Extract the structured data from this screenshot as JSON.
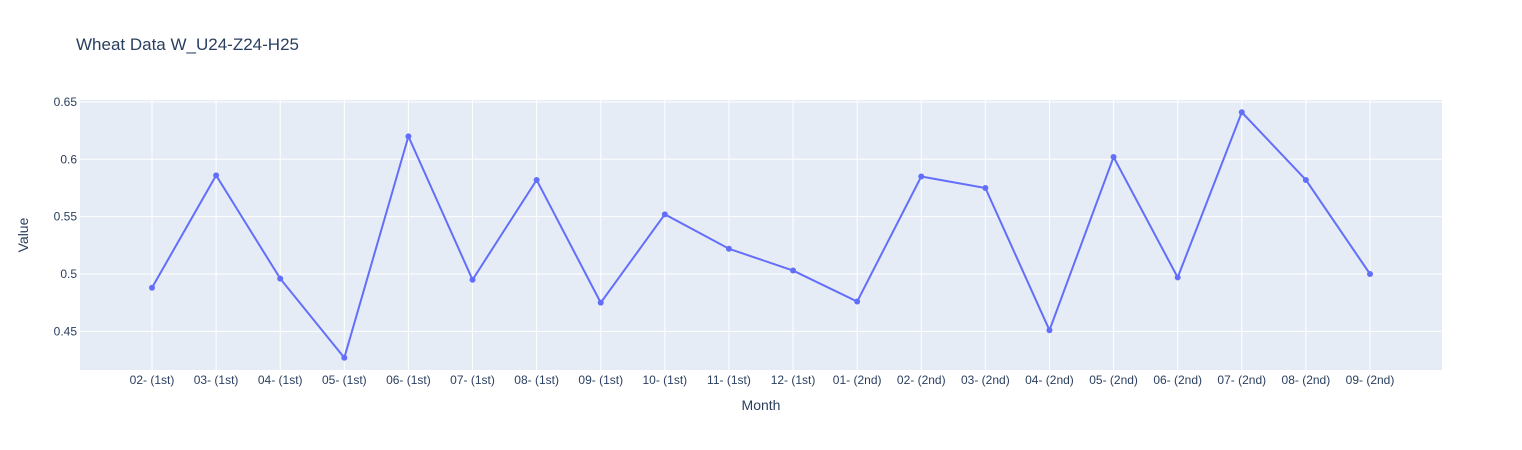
{
  "chart_data": {
    "type": "line",
    "title": "Wheat Data W_U24-Z24-H25",
    "xlabel": "Month",
    "ylabel": "Value",
    "categories": [
      "02- (1st)",
      "03- (1st)",
      "04- (1st)",
      "05- (1st)",
      "06- (1st)",
      "07- (1st)",
      "08- (1st)",
      "09- (1st)",
      "10- (1st)",
      "11- (1st)",
      "12- (1st)",
      "01- (2nd)",
      "02- (2nd)",
      "03- (2nd)",
      "04- (2nd)",
      "05- (2nd)",
      "06- (2nd)",
      "07- (2nd)",
      "08- (2nd)",
      "09- (2nd)"
    ],
    "series": [
      {
        "values": [
          0.488,
          0.586,
          0.496,
          0.427,
          0.62,
          0.495,
          0.582,
          0.475,
          0.552,
          0.522,
          0.503,
          0.476,
          0.585,
          0.575,
          0.451,
          0.602,
          0.497,
          0.641,
          0.582,
          0.5
        ]
      }
    ],
    "yticks": [
      "0.45",
      "0.5",
      "0.55",
      "0.6",
      "0.65"
    ],
    "ylim": [
      0.4163,
      0.6517
    ],
    "grid": true,
    "colors": {
      "line": "#636efa",
      "plot_bg": "#e5ecf6",
      "grid": "#ffffff",
      "text": "#2a3f5f"
    }
  }
}
